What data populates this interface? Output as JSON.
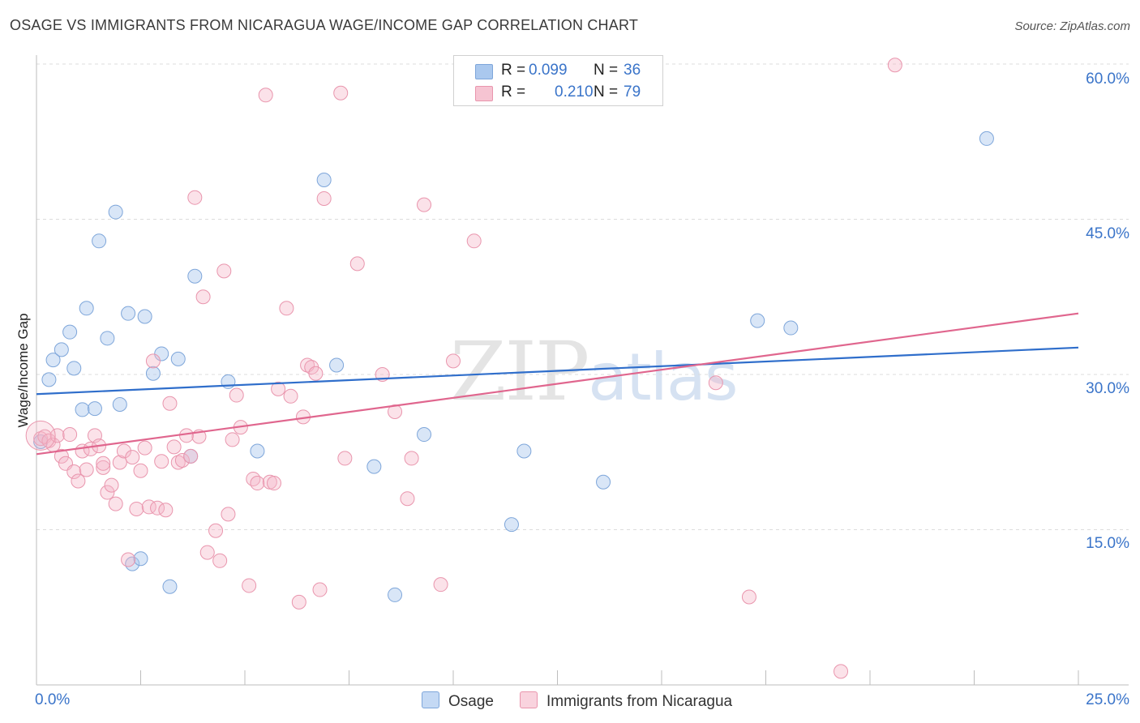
{
  "header": {
    "title": "OSAGE VS IMMIGRANTS FROM NICARAGUA WAGE/INCOME GAP CORRELATION CHART",
    "source": "Source: ZipAtlas.com"
  },
  "legend": {
    "r_label": "R =",
    "n_label": "N =",
    "series": [
      {
        "name": "Osage",
        "r": "0.099",
        "n": "36",
        "color": "#aac8ee",
        "line": "#2f6ecb"
      },
      {
        "name": "Immigrants from Nicaragua",
        "r": "0.210",
        "n": "79",
        "color": "#f6b6c8",
        "line": "#e0668e"
      }
    ]
  },
  "watermark": {
    "zip": "ZIP",
    "atlas": "atlas"
  },
  "chart_data": {
    "type": "scatter",
    "title": "OSAGE VS IMMIGRANTS FROM NICARAGUA WAGE/INCOME GAP CORRELATION CHART",
    "xlabel": "",
    "ylabel": "Wage/Income Gap",
    "xlim": [
      0,
      25
    ],
    "ylim": [
      0,
      60
    ],
    "x_tick_labels": [
      "0.0%",
      "25.0%"
    ],
    "y_ticks": [
      15,
      30,
      45,
      60
    ],
    "y_tick_labels": [
      "15.0%",
      "30.0%",
      "45.0%",
      "60.0%"
    ],
    "series": [
      {
        "name": "Osage",
        "trend": [
          [
            0,
            28.1
          ],
          [
            25,
            32.6
          ]
        ],
        "points": [
          [
            0.1,
            23.5
          ],
          [
            0.3,
            29.5
          ],
          [
            0.4,
            31.4
          ],
          [
            0.6,
            32.4
          ],
          [
            0.8,
            34.1
          ],
          [
            0.9,
            30.6
          ],
          [
            1.1,
            26.6
          ],
          [
            1.2,
            36.4
          ],
          [
            1.4,
            26.7
          ],
          [
            1.5,
            42.9
          ],
          [
            1.7,
            33.5
          ],
          [
            1.9,
            45.7
          ],
          [
            2.0,
            27.1
          ],
          [
            2.2,
            35.9
          ],
          [
            2.3,
            11.7
          ],
          [
            2.5,
            12.2
          ],
          [
            2.6,
            35.6
          ],
          [
            2.8,
            30.1
          ],
          [
            3.0,
            32.0
          ],
          [
            3.2,
            9.5
          ],
          [
            3.4,
            31.5
          ],
          [
            3.7,
            22.1
          ],
          [
            3.8,
            39.5
          ],
          [
            4.6,
            29.3
          ],
          [
            5.3,
            22.6
          ],
          [
            6.9,
            48.8
          ],
          [
            7.2,
            30.9
          ],
          [
            8.1,
            21.1
          ],
          [
            8.6,
            8.7
          ],
          [
            9.3,
            24.2
          ],
          [
            11.4,
            15.5
          ],
          [
            11.7,
            22.6
          ],
          [
            13.6,
            19.6
          ],
          [
            17.3,
            35.2
          ],
          [
            18.1,
            34.5
          ],
          [
            22.8,
            52.8
          ]
        ]
      },
      {
        "name": "Immigrants from Nicaragua",
        "trend": [
          [
            0,
            22.3
          ],
          [
            25,
            35.9
          ]
        ],
        "points": [
          [
            0.1,
            23.8
          ],
          [
            0.2,
            24.0
          ],
          [
            0.3,
            23.6
          ],
          [
            0.4,
            23.2
          ],
          [
            0.5,
            24.1
          ],
          [
            0.6,
            22.1
          ],
          [
            0.7,
            21.4
          ],
          [
            0.8,
            24.2
          ],
          [
            0.9,
            20.6
          ],
          [
            1.0,
            19.7
          ],
          [
            1.1,
            22.6
          ],
          [
            1.2,
            20.8
          ],
          [
            1.3,
            22.8
          ],
          [
            1.4,
            24.1
          ],
          [
            1.5,
            23.1
          ],
          [
            1.6,
            21.0
          ],
          [
            1.6,
            21.4
          ],
          [
            1.7,
            18.6
          ],
          [
            1.8,
            19.3
          ],
          [
            1.9,
            17.5
          ],
          [
            2.0,
            21.5
          ],
          [
            2.1,
            22.6
          ],
          [
            2.2,
            12.1
          ],
          [
            2.3,
            22.0
          ],
          [
            2.4,
            17.0
          ],
          [
            2.5,
            20.7
          ],
          [
            2.6,
            22.9
          ],
          [
            2.7,
            17.2
          ],
          [
            2.8,
            31.3
          ],
          [
            2.9,
            17.1
          ],
          [
            3.0,
            21.6
          ],
          [
            3.1,
            16.9
          ],
          [
            3.2,
            27.2
          ],
          [
            3.3,
            23.0
          ],
          [
            3.4,
            21.5
          ],
          [
            3.5,
            21.7
          ],
          [
            3.6,
            24.1
          ],
          [
            3.7,
            22.1
          ],
          [
            3.8,
            47.1
          ],
          [
            3.9,
            24.0
          ],
          [
            4.0,
            37.5
          ],
          [
            4.1,
            12.8
          ],
          [
            4.3,
            14.9
          ],
          [
            4.4,
            12.0
          ],
          [
            4.5,
            40.0
          ],
          [
            4.6,
            16.5
          ],
          [
            4.7,
            23.7
          ],
          [
            4.8,
            28.0
          ],
          [
            4.9,
            24.9
          ],
          [
            5.1,
            9.6
          ],
          [
            5.2,
            19.9
          ],
          [
            5.3,
            19.5
          ],
          [
            5.5,
            57.0
          ],
          [
            5.6,
            19.6
          ],
          [
            5.7,
            19.5
          ],
          [
            5.8,
            28.6
          ],
          [
            6.0,
            36.4
          ],
          [
            6.1,
            27.9
          ],
          [
            6.3,
            8.0
          ],
          [
            6.4,
            25.9
          ],
          [
            6.5,
            30.9
          ],
          [
            6.6,
            30.7
          ],
          [
            6.7,
            30.1
          ],
          [
            6.8,
            9.2
          ],
          [
            6.9,
            47.0
          ],
          [
            7.3,
            57.2
          ],
          [
            7.4,
            21.9
          ],
          [
            7.7,
            40.7
          ],
          [
            8.3,
            30.0
          ],
          [
            8.6,
            26.4
          ],
          [
            8.9,
            18.0
          ],
          [
            9.0,
            21.9
          ],
          [
            9.3,
            46.4
          ],
          [
            9.7,
            9.7
          ],
          [
            10.0,
            31.3
          ],
          [
            10.5,
            42.9
          ],
          [
            16.3,
            29.2
          ],
          [
            17.1,
            8.5
          ],
          [
            19.3,
            1.3
          ],
          [
            20.6,
            59.9
          ]
        ]
      }
    ]
  }
}
